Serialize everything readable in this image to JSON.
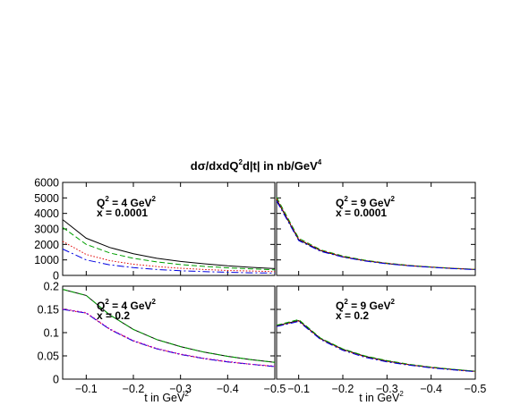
{
  "figure": {
    "title_pre": "d",
    "title_sigma": "σ",
    "title_main": "/dxdQ",
    "title_sup": "2",
    "title_mid": "d|t| in nb/GeV",
    "title_sup2": "4",
    "xlabel_main": "t in GeV",
    "xlabel_sup": "2"
  },
  "series_styles": [
    {
      "color": "#000000",
      "dash": ""
    },
    {
      "color": "#00a000",
      "dash": "6,3"
    },
    {
      "color": "#e00000",
      "dash": "1.5,2"
    },
    {
      "color": "#0000e0",
      "dash": "8,3,2,3"
    },
    {
      "color": "#c000c0",
      "dash": "2,2"
    }
  ],
  "chart_data": [
    {
      "type": "line",
      "panel": "top-left",
      "annotation": {
        "q": "Q",
        "q_sup": "2",
        "q_rest": " = 4 GeV",
        "q_sup2": "2",
        "x": "x = 0.0001"
      },
      "x": [
        -0.05,
        -0.1,
        -0.15,
        -0.2,
        -0.25,
        -0.3,
        -0.35,
        -0.4,
        -0.45,
        -0.5
      ],
      "xlim": [
        -0.05,
        -0.5
      ],
      "ylim": [
        0,
        6000
      ],
      "xticks": [
        {
          "v": -0.1,
          "t": "−0.1"
        },
        {
          "v": -0.2,
          "t": "−0.2"
        },
        {
          "v": -0.3,
          "t": "−0.3"
        },
        {
          "v": -0.4,
          "t": "−0.4"
        },
        {
          "v": -0.5,
          "t": "−0.5"
        }
      ],
      "yticks": [
        {
          "v": 0,
          "t": "0"
        },
        {
          "v": 1000,
          "t": "1000"
        },
        {
          "v": 2000,
          "t": "2000"
        },
        {
          "v": 3000,
          "t": "3000"
        },
        {
          "v": 4000,
          "t": "4000"
        },
        {
          "v": 5000,
          "t": "5000"
        },
        {
          "v": 6000,
          "t": "6000"
        }
      ],
      "series": [
        {
          "values": [
            3600,
            2400,
            1800,
            1400,
            1100,
            900,
            750,
            620,
            520,
            440
          ]
        },
        {
          "values": [
            3100,
            2000,
            1450,
            1100,
            870,
            700,
            580,
            490,
            420,
            360
          ]
        },
        {
          "values": [
            2200,
            1350,
            950,
            720,
            570,
            460,
            380,
            320,
            280,
            240
          ]
        },
        {
          "values": [
            1700,
            1000,
            680,
            500,
            380,
            300,
            240,
            200,
            170,
            150
          ]
        }
      ]
    },
    {
      "type": "line",
      "panel": "top-right",
      "annotation": {
        "q": "Q",
        "q_sup": "2",
        "q_rest": " = 9 GeV",
        "q_sup2": "2",
        "x": "x = 0.0001"
      },
      "x": [
        -0.05,
        -0.1,
        -0.15,
        -0.2,
        -0.25,
        -0.3,
        -0.35,
        -0.4,
        -0.45,
        -0.5
      ],
      "xlim": [
        -0.05,
        -0.5
      ],
      "ylim": [
        0,
        6000
      ],
      "xticks": [
        {
          "v": -0.1,
          "t": "−0.1"
        },
        {
          "v": -0.2,
          "t": "−0.2"
        },
        {
          "v": -0.3,
          "t": "−0.3"
        },
        {
          "v": -0.4,
          "t": "−0.4"
        },
        {
          "v": -0.5,
          "t": "−0.5"
        }
      ],
      "yticks": [
        {
          "v": 0,
          "t": "0"
        },
        {
          "v": 1000,
          "t": "1000"
        },
        {
          "v": 2000,
          "t": "2000"
        },
        {
          "v": 3000,
          "t": "3000"
        },
        {
          "v": 4000,
          "t": "4000"
        },
        {
          "v": 5000,
          "t": "5000"
        },
        {
          "v": 6000,
          "t": "6000"
        }
      ],
      "series": [
        {
          "values": [
            4900,
            2300,
            1600,
            1200,
            950,
            770,
            630,
            530,
            450,
            380
          ]
        },
        {
          "values": [
            5050,
            2400,
            1650,
            1250,
            980,
            790,
            650,
            540,
            460,
            390
          ]
        },
        {
          "values": [
            4950,
            2350,
            1620,
            1220,
            960,
            780,
            640,
            535,
            455,
            385
          ]
        },
        {
          "values": [
            4800,
            2250,
            1550,
            1180,
            930,
            750,
            620,
            520,
            440,
            370
          ]
        }
      ]
    },
    {
      "type": "line",
      "panel": "bottom-left",
      "annotation": {
        "q": "Q",
        "q_sup": "2",
        "q_rest": " = 4 GeV",
        "q_sup2": "2",
        "x": "x = 0.2"
      },
      "x": [
        -0.05,
        -0.1,
        -0.15,
        -0.2,
        -0.25,
        -0.3,
        -0.35,
        -0.4,
        -0.45,
        -0.5
      ],
      "xlim": [
        -0.05,
        -0.5
      ],
      "ylim": [
        0,
        0.2
      ],
      "xticks": [
        {
          "v": -0.1,
          "t": "−0.1"
        },
        {
          "v": -0.2,
          "t": "−0.2"
        },
        {
          "v": -0.3,
          "t": "−0.3"
        },
        {
          "v": -0.4,
          "t": "−0.4"
        },
        {
          "v": -0.5,
          "t": "−0.5"
        }
      ],
      "yticks": [
        {
          "v": 0,
          "t": "0"
        },
        {
          "v": 0.05,
          "t": "0.05"
        },
        {
          "v": 0.1,
          "t": "0.1"
        },
        {
          "v": 0.15,
          "t": "0.15"
        },
        {
          "v": 0.2,
          "t": "0.2"
        }
      ],
      "series": [
        {
          "values": [
            0.193,
            0.18,
            0.138,
            0.107,
            0.085,
            0.07,
            0.058,
            0.049,
            0.042,
            0.036
          ]
        },
        {
          "values": [
            0.193,
            0.18,
            0.138,
            0.107,
            0.085,
            0.07,
            0.058,
            0.049,
            0.042,
            0.036
          ]
        },
        {
          "values": [
            0.15,
            0.142,
            0.107,
            0.082,
            0.065,
            0.053,
            0.044,
            0.037,
            0.032,
            0.027
          ]
        },
        {
          "values": [
            0.15,
            0.142,
            0.107,
            0.082,
            0.065,
            0.053,
            0.044,
            0.037,
            0.032,
            0.027
          ]
        },
        {
          "values": [
            0.151,
            0.143,
            0.108,
            0.083,
            0.066,
            0.054,
            0.045,
            0.038,
            0.032,
            0.028
          ]
        }
      ]
    },
    {
      "type": "line",
      "panel": "bottom-right",
      "annotation": {
        "q": "Q",
        "q_sup": "2",
        "q_rest": " = 9 GeV",
        "q_sup2": "2",
        "x": "x = 0.2"
      },
      "x": [
        -0.05,
        -0.1,
        -0.15,
        -0.2,
        -0.25,
        -0.3,
        -0.35,
        -0.4,
        -0.45,
        -0.5
      ],
      "xlim": [
        -0.05,
        -0.5
      ],
      "ylim": [
        0,
        0.2
      ],
      "xticks": [
        {
          "v": -0.1,
          "t": "−0.1"
        },
        {
          "v": -0.2,
          "t": "−0.2"
        },
        {
          "v": -0.3,
          "t": "−0.3"
        },
        {
          "v": -0.4,
          "t": "−0.4"
        },
        {
          "v": -0.5,
          "t": "−0.5"
        }
      ],
      "yticks": [
        {
          "v": 0,
          "t": "0"
        },
        {
          "v": 0.05,
          "t": "0.05"
        },
        {
          "v": 0.1,
          "t": "0.1"
        },
        {
          "v": 0.15,
          "t": "0.15"
        },
        {
          "v": 0.2,
          "t": "0.2"
        }
      ],
      "series": [
        {
          "values": [
            0.115,
            0.126,
            0.087,
            0.064,
            0.049,
            0.039,
            0.031,
            0.025,
            0.021,
            0.017
          ]
        },
        {
          "values": [
            0.116,
            0.128,
            0.088,
            0.065,
            0.05,
            0.04,
            0.032,
            0.026,
            0.021,
            0.017
          ]
        },
        {
          "values": [
            0.114,
            0.125,
            0.086,
            0.063,
            0.048,
            0.038,
            0.031,
            0.025,
            0.02,
            0.016
          ]
        },
        {
          "values": [
            0.113,
            0.124,
            0.085,
            0.062,
            0.047,
            0.037,
            0.03,
            0.024,
            0.02,
            0.016
          ]
        }
      ]
    }
  ]
}
